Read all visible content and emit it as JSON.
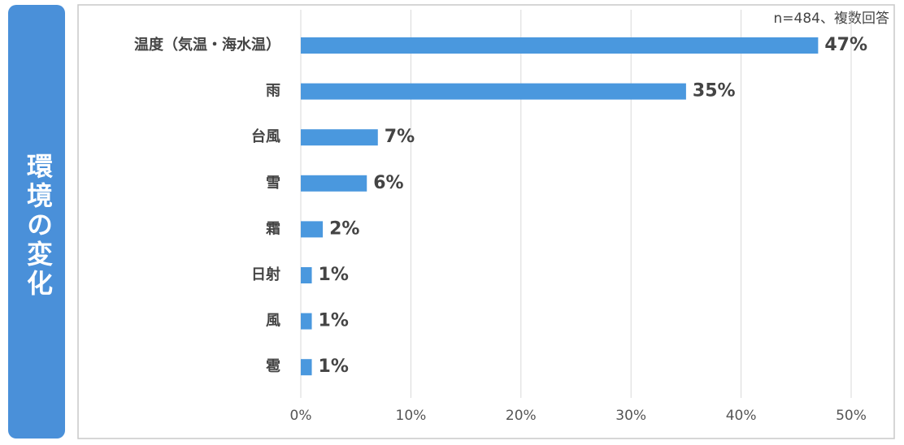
{
  "chart_data": {
    "type": "bar",
    "orientation": "horizontal",
    "title": "環境の変化",
    "annotation": "n=484、複数回答",
    "categories": [
      "温度（気温・海水温）",
      "雨",
      "台風",
      "雪",
      "霜",
      "日射",
      "風",
      "雹"
    ],
    "values": [
      47,
      35,
      7,
      6,
      2,
      1,
      1,
      1
    ],
    "value_labels": [
      "47%",
      "35%",
      "7%",
      "6%",
      "2%",
      "1%",
      "1%",
      "1%"
    ],
    "color": "#4a98de",
    "xlim": [
      0,
      50
    ],
    "xticks": [
      {
        "value": 0,
        "label": "0%"
      },
      {
        "value": 10,
        "label": "10%"
      },
      {
        "value": 20,
        "label": "20%"
      },
      {
        "value": 30,
        "label": "30%"
      },
      {
        "value": 40,
        "label": "40%"
      },
      {
        "value": 50,
        "label": "50%"
      }
    ],
    "grid": true
  }
}
